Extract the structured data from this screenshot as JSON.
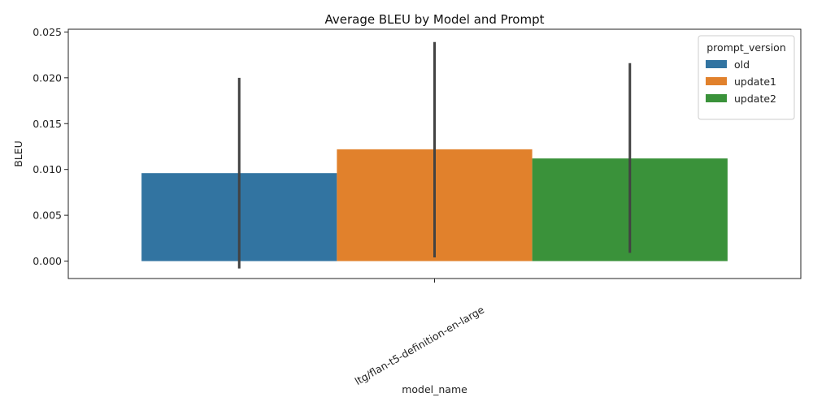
{
  "chart_data": {
    "type": "bar",
    "title": "Average BLEU by Model and Prompt",
    "xlabel": "model_name",
    "ylabel": "BLEU",
    "categories": [
      "ltg/flan-t5-definition-en-large"
    ],
    "ylim": [
      -0.0019,
      0.0253
    ],
    "yticks": [
      "0.000",
      "0.005",
      "0.010",
      "0.015",
      "0.020",
      "0.025"
    ],
    "legend": {
      "title": "prompt_version",
      "position": "top-right"
    },
    "grid": false,
    "series": [
      {
        "name": "old",
        "color": "#3274a1",
        "values": [
          0.0096
        ],
        "ci_low": [
          -0.0008
        ],
        "ci_high": [
          0.02
        ]
      },
      {
        "name": "update1",
        "color": "#e1812c",
        "values": [
          0.0122
        ],
        "ci_low": [
          0.0004
        ],
        "ci_high": [
          0.0239
        ]
      },
      {
        "name": "update2",
        "color": "#3a923a",
        "values": [
          0.0112
        ],
        "ci_low": [
          0.0009
        ],
        "ci_high": [
          0.0216
        ]
      }
    ]
  }
}
